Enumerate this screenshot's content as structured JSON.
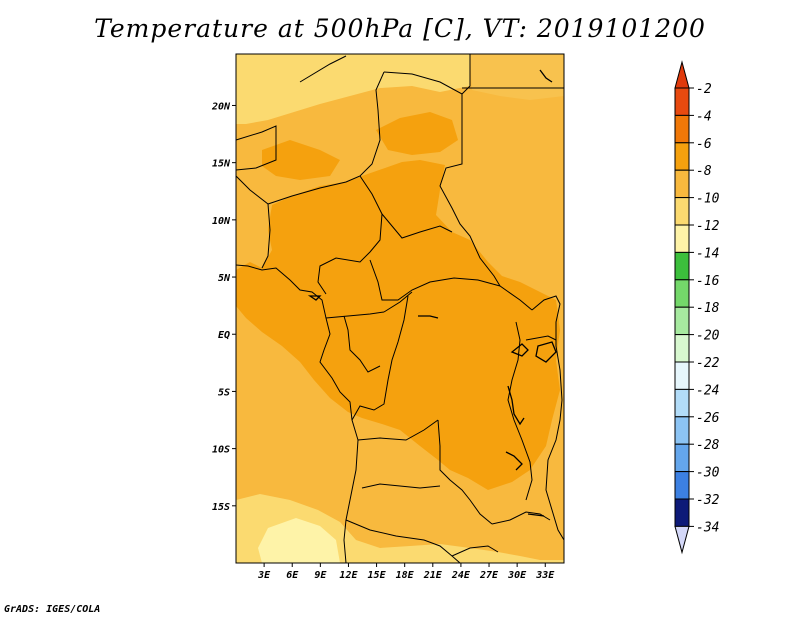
{
  "title": "Temperature at 500hPa [C], VT: 2019101200",
  "credit": "GrADS: IGES/COLA",
  "map": {
    "lon_range": [
      0,
      35
    ],
    "lat_range": [
      -20,
      24.5
    ],
    "lat_ticks": [
      {
        "value": 20,
        "label": "20N"
      },
      {
        "value": 15,
        "label": "15N"
      },
      {
        "value": 10,
        "label": "10N"
      },
      {
        "value": 5,
        "label": "5N"
      },
      {
        "value": 0,
        "label": "EQ"
      },
      {
        "value": -5,
        "label": "5S"
      },
      {
        "value": -10,
        "label": "10S"
      },
      {
        "value": -15,
        "label": "15S"
      }
    ],
    "lon_ticks": [
      {
        "value": 3,
        "label": "3E"
      },
      {
        "value": 6,
        "label": "6E"
      },
      {
        "value": 9,
        "label": "9E"
      },
      {
        "value": 12,
        "label": "12E"
      },
      {
        "value": 15,
        "label": "15E"
      },
      {
        "value": 18,
        "label": "18E"
      },
      {
        "value": 21,
        "label": "21E"
      },
      {
        "value": 24,
        "label": "24E"
      },
      {
        "value": 27,
        "label": "27E"
      },
      {
        "value": 30,
        "label": "30E"
      },
      {
        "value": 33,
        "label": "33E"
      }
    ]
  },
  "colorbar": {
    "levels": [
      {
        "label": "-2",
        "color": "#e84a10"
      },
      {
        "label": "-4",
        "color": "#f07808"
      },
      {
        "label": "-6",
        "color": "#f5a10e"
      },
      {
        "label": "-8",
        "color": "#f8b93e"
      },
      {
        "label": "-10",
        "color": "#fbda70"
      },
      {
        "label": "-12",
        "color": "#fef3a8"
      },
      {
        "label": "-14",
        "color": "#3cbf3c"
      },
      {
        "label": "-16",
        "color": "#74d86a"
      },
      {
        "label": "-18",
        "color": "#a7eaa0"
      },
      {
        "label": "-20",
        "color": "#d8f8d0"
      },
      {
        "label": "-22",
        "color": "#e6f6fc"
      },
      {
        "label": "-24",
        "color": "#b2dcf8"
      },
      {
        "label": "-26",
        "color": "#8cc4f4"
      },
      {
        "label": "-28",
        "color": "#64a6ec"
      },
      {
        "label": "-30",
        "color": "#3c80e2"
      },
      {
        "label": "-32",
        "color": "#1f5fd4"
      },
      {
        "label": "-34",
        "color": "#1040b8"
      }
    ],
    "top_color": "#e03a0c",
    "bottom_bin_color": "#0d1a78",
    "bottom_color": "#d4d8f8"
  }
}
